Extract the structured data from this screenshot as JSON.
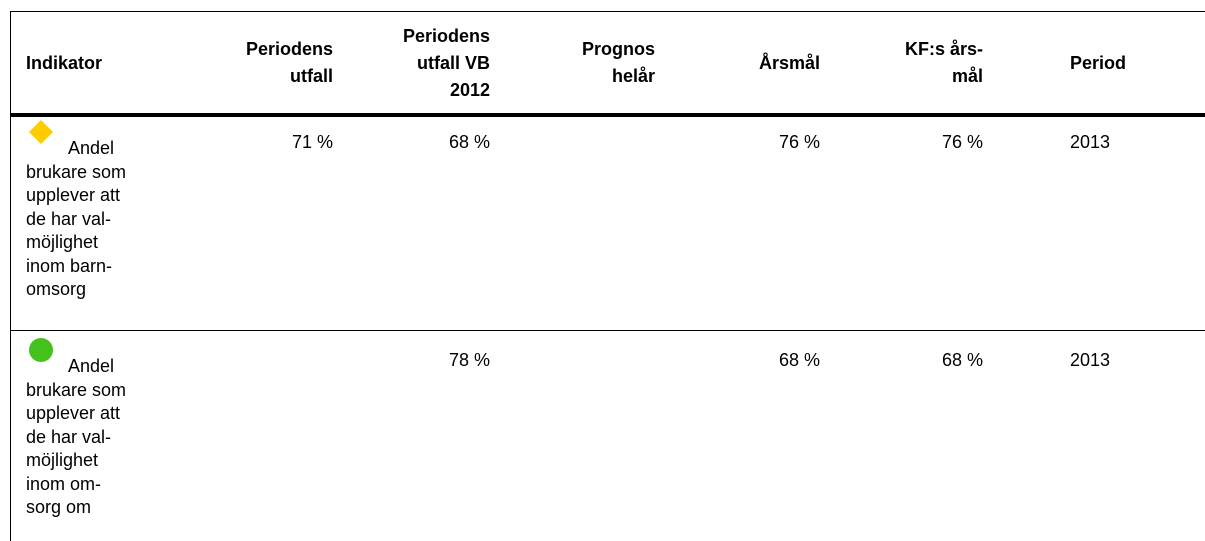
{
  "table": {
    "header": [
      [
        "Indikator"
      ],
      [
        "Periodens",
        "utfall"
      ],
      [
        "Periodens",
        "utfall VB",
        "2012"
      ],
      [
        "Prognos",
        "helår"
      ],
      [
        "Årsmål"
      ],
      [
        "KF:s års-",
        "mål"
      ],
      [
        "Period"
      ]
    ],
    "rows": [
      {
        "status": "yellow-diamond",
        "indicator": [
          "Andel",
          "brukare som",
          "upplever att",
          "de har val-",
          "möjlighet",
          "inom barn-",
          "omsorg"
        ],
        "cells": [
          "71 %",
          "68 %",
          null,
          "76 %",
          "76 %",
          "2013"
        ]
      },
      {
        "status": "green-circle",
        "indicator": [
          "Andel",
          "brukare som",
          "upplever att",
          "de har val-",
          "möjlighet",
          "inom om-",
          "sorg om"
        ],
        "cells": [
          null,
          "78 %",
          null,
          "68 %",
          "68 %",
          "2013"
        ]
      }
    ]
  }
}
